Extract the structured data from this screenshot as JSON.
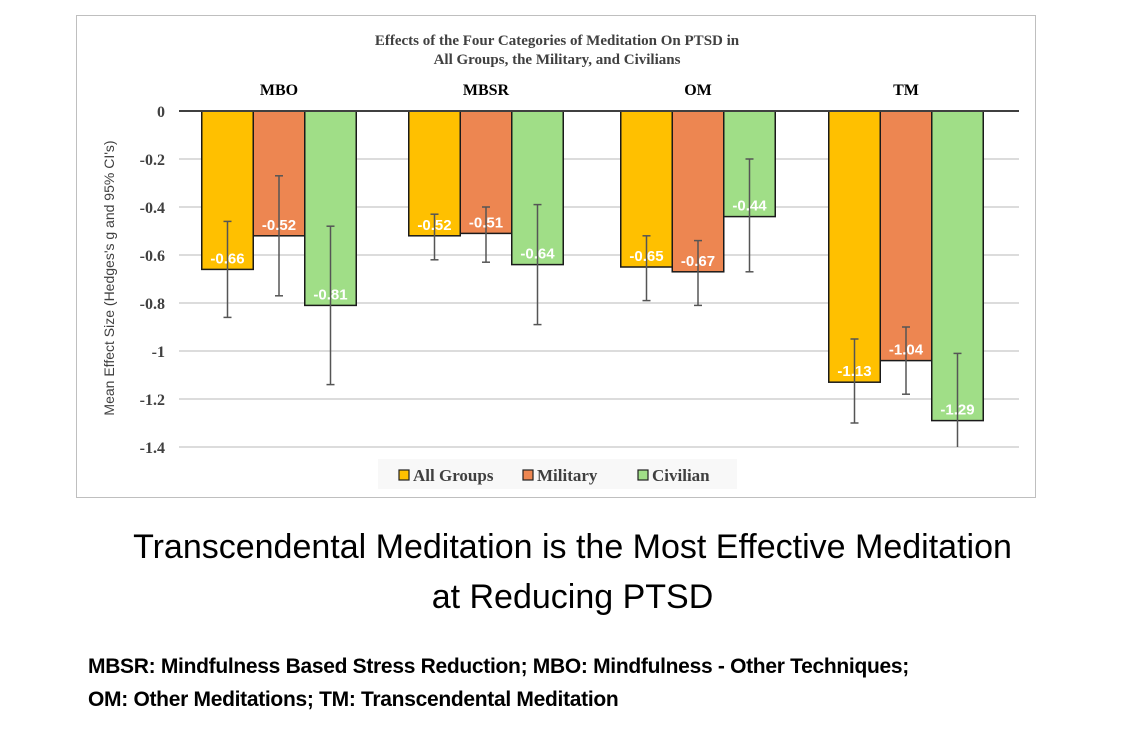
{
  "chart_data": {
    "type": "bar",
    "title": "Effects of the Four Categories of Meditation On PTSD in\nAll Groups, the Military, and Civilians",
    "title_lines": [
      "Effects of the Four Categories of Meditation On PTSD in",
      "All Groups, the Military, and Civilians"
    ],
    "categories": [
      "MBO",
      "MBSR",
      "OM",
      "TM"
    ],
    "xlabel": "",
    "ylabel": "Mean Effect Size (Hedges's g and 95% CI's)",
    "ylim": [
      -1.4,
      0
    ],
    "yticks": [
      0,
      -0.2,
      -0.4,
      -0.6,
      -0.8,
      -1,
      -1.2,
      -1.4
    ],
    "ytick_labels": [
      "0",
      "-0.2",
      "-0.4",
      "-0.6",
      "-0.8",
      "-1",
      "-1.2",
      "-1.4"
    ],
    "grid": true,
    "legend_position": "bottom",
    "series": [
      {
        "name": "All Groups",
        "color": "#FFC000",
        "values": [
          -0.66,
          -0.52,
          -0.65,
          -1.13
        ],
        "labels": [
          "-0.66",
          "-0.52",
          "-0.65",
          "-1.13"
        ],
        "ci_upper": [
          -0.46,
          -0.43,
          -0.52,
          -0.95
        ],
        "ci_lower": [
          -0.86,
          -0.62,
          -0.79,
          -1.3
        ]
      },
      {
        "name": "Military",
        "color": "#ED8651",
        "values": [
          -0.52,
          -0.51,
          -0.67,
          -1.04
        ],
        "labels": [
          "-0.52",
          "-0.51",
          "-0.67",
          "-1.04"
        ],
        "ci_upper": [
          -0.27,
          -0.4,
          -0.54,
          -0.9
        ],
        "ci_lower": [
          -0.77,
          -0.63,
          -0.81,
          -1.18
        ]
      },
      {
        "name": "Civilian",
        "color": "#A0DE87",
        "values": [
          -0.81,
          -0.64,
          -0.44,
          -1.29
        ],
        "labels": [
          "-0.81",
          "-0.64",
          "-0.44",
          "-1.29"
        ],
        "ci_upper": [
          -0.48,
          -0.39,
          -0.2,
          -1.01
        ],
        "ci_lower": [
          -1.14,
          -0.89,
          -0.67,
          -1.4
        ]
      }
    ]
  },
  "headline": {
    "line1": "Transcendental Meditation is the Most Effective Meditation",
    "line2": "at Reducing PTSD"
  },
  "footnote": {
    "line1": "MBSR: Mindfulness Based Stress Reduction; MBO:  Mindfulness - Other Techniques;",
    "line2": "OM: Other Meditations; TM: Transcendental Meditation"
  }
}
